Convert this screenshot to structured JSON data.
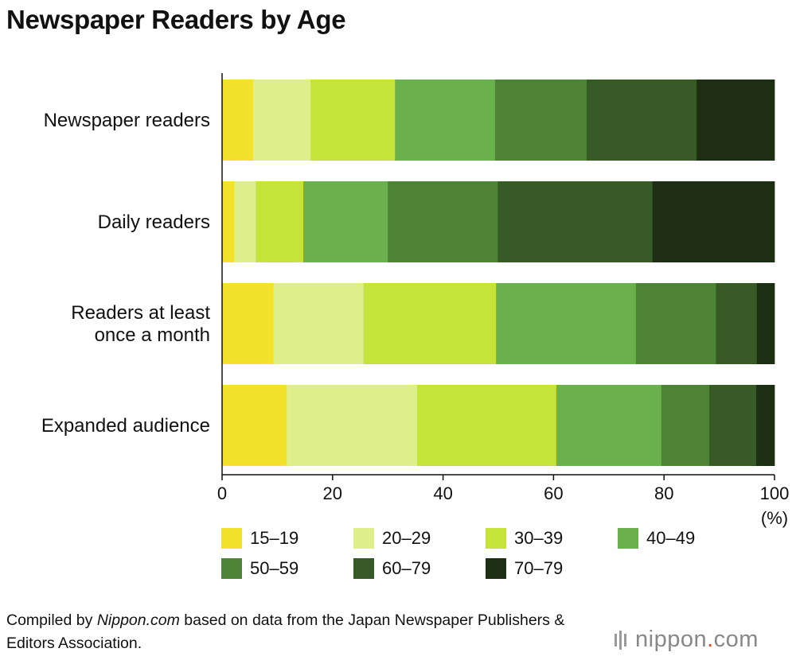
{
  "title": "Newspaper Readers by Age",
  "chart_data": {
    "type": "bar",
    "orientation": "horizontal",
    "stacked": true,
    "title": "Newspaper Readers by Age",
    "xlabel": "(%)",
    "ylabel": "",
    "xlim": [
      0,
      100
    ],
    "x_ticks": [
      "0",
      "20",
      "40",
      "60",
      "80",
      "100"
    ],
    "grid": false,
    "legend_position": "bottom",
    "categories": [
      "Newspaper readers",
      "Daily readers",
      "Readers at least once a month",
      "Expanded audience"
    ],
    "category_lines": [
      [
        "Newspaper readers"
      ],
      [
        "Daily readers"
      ],
      [
        "Readers at least",
        "once a month"
      ],
      [
        "Expanded audience"
      ]
    ],
    "series": [
      {
        "name": "15–19",
        "color": "#f2e22b",
        "values": [
          5.6,
          2.2,
          9.3,
          11.7
        ]
      },
      {
        "name": "20–29",
        "color": "#ddee8a",
        "values": [
          10.4,
          3.9,
          16.3,
          23.6
        ]
      },
      {
        "name": "30–39",
        "color": "#c6e33a",
        "values": [
          15.3,
          8.6,
          24.0,
          25.2
        ]
      },
      {
        "name": "40–49",
        "color": "#6ab04c",
        "values": [
          18.1,
          15.3,
          25.3,
          19.0
        ]
      },
      {
        "name": "50–59",
        "color": "#4f8438",
        "values": [
          16.6,
          19.9,
          14.5,
          8.7
        ]
      },
      {
        "name": "60–79",
        "color": "#375a27",
        "values": [
          19.9,
          28.0,
          7.4,
          8.5
        ]
      },
      {
        "name": "70–79",
        "color": "#1e2e14",
        "values": [
          14.1,
          22.1,
          3.2,
          3.3
        ]
      }
    ]
  },
  "caption": {
    "prefix": "Compiled by ",
    "brand": "Nippon.com",
    "suffix": " based on data from the Japan Newspaper Publishers & Editors Association."
  },
  "logo": {
    "name": "nippon",
    "dot": ".",
    "tld": "com",
    "color": "#888888",
    "accent": "#e04a2a"
  }
}
